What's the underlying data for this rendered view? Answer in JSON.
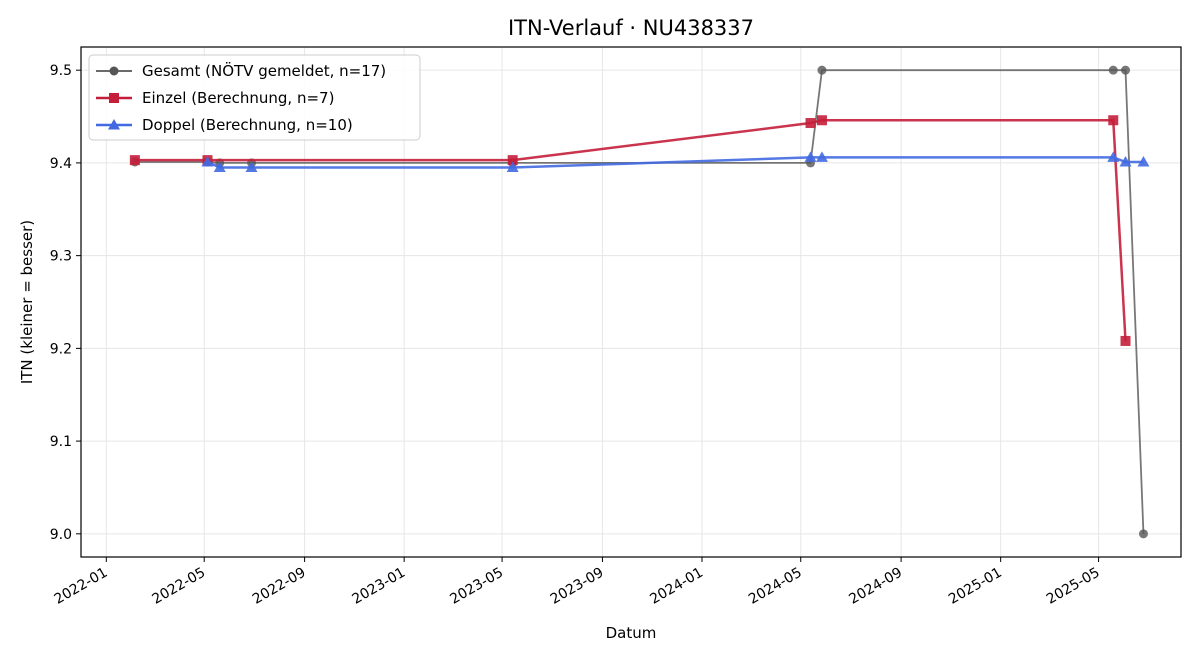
{
  "chart_data": {
    "type": "line",
    "title": "ITN-Verlauf · NU438337",
    "xlabel": "Datum",
    "ylabel": "ITN  (kleiner = besser)",
    "x_axis_type": "date",
    "xlim": [
      "2021-12-01",
      "2025-08-10"
    ],
    "ylim": [
      8.975,
      9.525
    ],
    "x_ticks": [
      "2022-01",
      "2022-05",
      "2022-09",
      "2023-01",
      "2023-05",
      "2023-09",
      "2024-01",
      "2024-05",
      "2024-09",
      "2025-01",
      "2025-05"
    ],
    "y_ticks": [
      9.0,
      9.1,
      9.2,
      9.3,
      9.4,
      9.5
    ],
    "grid": true,
    "legend_position": "top-left",
    "series": [
      {
        "name": "Gesamt (NÖTV gemeldet, n=17)",
        "color": "#555555",
        "marker": "circle",
        "x": [
          "2022-02-05",
          "2022-05-05",
          "2022-05-20",
          "2022-06-28",
          "2023-05-14",
          "2024-05-13",
          "2024-05-27",
          "2025-05-19",
          "2025-06-03",
          "2025-06-25"
        ],
        "values": [
          9.401,
          9.401,
          9.4,
          9.4,
          9.4,
          9.4,
          9.5,
          9.5,
          9.5,
          9.0
        ]
      },
      {
        "name": "Einzel (Berechnung, n=7)",
        "color": "#c41e3a",
        "marker": "square",
        "x": [
          "2022-02-05",
          "2022-05-05",
          "2023-05-14",
          "2024-05-13",
          "2024-05-27",
          "2025-05-19",
          "2025-06-03"
        ],
        "values": [
          9.403,
          9.403,
          9.403,
          9.443,
          9.446,
          9.446,
          9.208
        ]
      },
      {
        "name": "Doppel (Berechnung, n=10)",
        "color": "#4169e1",
        "marker": "triangle",
        "x": [
          "2022-05-05",
          "2022-05-20",
          "2022-06-28",
          "2023-05-14",
          "2024-05-13",
          "2024-05-27",
          "2025-05-19",
          "2025-06-03",
          "2025-06-25"
        ],
        "values": [
          9.401,
          9.395,
          9.395,
          9.395,
          9.406,
          9.406,
          9.406,
          9.401,
          9.401
        ]
      }
    ]
  }
}
